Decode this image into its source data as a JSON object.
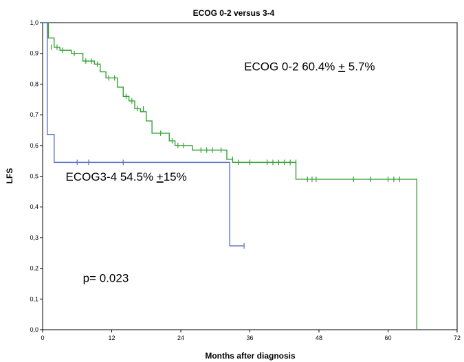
{
  "chart_data": {
    "type": "line",
    "title": "ECOG 0-2 versus 3-4",
    "xlabel": "Months after diagnosis",
    "ylabel": "LFS",
    "xlim": [
      0,
      72
    ],
    "ylim": [
      0,
      1.0
    ],
    "xticks": [
      "0",
      "12",
      "24",
      "36",
      "48",
      "60",
      "72"
    ],
    "yticks": [
      "0,0",
      "0,1",
      "0,2",
      "0,3",
      "0,4",
      "0,5",
      "0,6",
      "0,7",
      "0,8",
      "0,9",
      "1,0"
    ],
    "grid": false,
    "series": [
      {
        "name": "ECOG 0-2 60.4% + 5.7%",
        "color": "#33a233",
        "step_x": [
          0,
          1,
          2,
          3,
          5,
          7,
          9,
          10,
          11,
          13,
          14,
          15,
          16,
          17,
          18,
          19,
          22,
          23,
          26,
          28,
          32,
          33,
          44,
          65,
          65
        ],
        "step_y": [
          1.0,
          0.95,
          0.92,
          0.91,
          0.9,
          0.875,
          0.865,
          0.84,
          0.82,
          0.79,
          0.76,
          0.745,
          0.72,
          0.71,
          0.68,
          0.64,
          0.615,
          0.6,
          0.585,
          0.585,
          0.555,
          0.545,
          0.49,
          0.49,
          0.0
        ],
        "censor_x": [
          1.5,
          2.5,
          3.5,
          5.5,
          7.5,
          8.5,
          9.5,
          11.5,
          12.5,
          14.5,
          15.5,
          16.5,
          17.5,
          20.5,
          22.5,
          23.5,
          24.5,
          27.5,
          28.5,
          29.5,
          31,
          33,
          34,
          36,
          39,
          40,
          41,
          42,
          43,
          44,
          46,
          46.8,
          47.5,
          54,
          57,
          60,
          61,
          62
        ],
        "censor_y": [
          0.92,
          0.92,
          0.91,
          0.9,
          0.875,
          0.875,
          0.865,
          0.82,
          0.82,
          0.76,
          0.745,
          0.72,
          0.72,
          0.64,
          0.615,
          0.6,
          0.6,
          0.585,
          0.585,
          0.585,
          0.585,
          0.555,
          0.545,
          0.545,
          0.545,
          0.545,
          0.545,
          0.545,
          0.545,
          0.545,
          0.49,
          0.49,
          0.49,
          0.49,
          0.49,
          0.49,
          0.49,
          0.49
        ]
      },
      {
        "name": "ECOG3-4 54.5% +15%",
        "color": "#5a6fc4",
        "step_x": [
          0,
          0.8,
          2,
          32.5,
          35
        ],
        "step_y": [
          1.0,
          0.636,
          0.545,
          0.273,
          0.273
        ],
        "censor_x": [
          6,
          8,
          14,
          35
        ],
        "censor_y": [
          0.545,
          0.545,
          0.545,
          0.273
        ]
      }
    ],
    "annotations": [
      {
        "text": "ECOG 0-2 60.4% + 5.7%",
        "x": 35,
        "y": 0.845
      },
      {
        "text": "ECOG3-4 54.5% +15%",
        "x": 4,
        "y": 0.485
      },
      {
        "text": "p= 0.023",
        "x": 7,
        "y": 0.155
      }
    ]
  }
}
